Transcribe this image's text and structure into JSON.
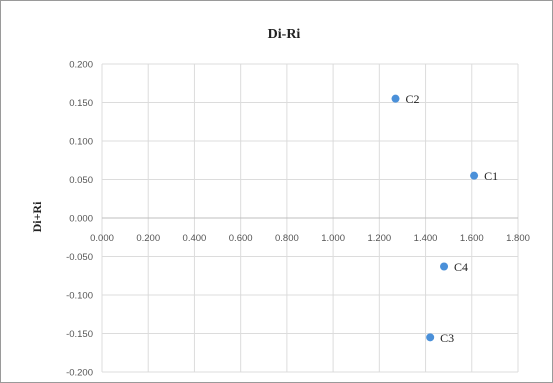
{
  "chart_data": {
    "type": "scatter",
    "title": "Di-Ri",
    "xlabel": "",
    "ylabel": "Di+Ri",
    "xlim": [
      0,
      1.8
    ],
    "ylim": [
      -0.2,
      0.2
    ],
    "x_ticks": [
      "0.000",
      "0.200",
      "0.400",
      "0.600",
      "0.800",
      "1.000",
      "1.200",
      "1.400",
      "1.600",
      "1.800"
    ],
    "y_ticks": [
      "0.200",
      "0.150",
      "0.100",
      "0.050",
      "0.000",
      "-0.050",
      "-0.100",
      "-0.150",
      "-0.200"
    ],
    "grid": true,
    "points": [
      {
        "label": "C1",
        "x": 1.61,
        "y": 0.055
      },
      {
        "label": "C2",
        "x": 1.27,
        "y": 0.155
      },
      {
        "label": "C3",
        "x": 1.42,
        "y": -0.155
      },
      {
        "label": "C4",
        "x": 1.48,
        "y": -0.063
      }
    ],
    "colors": {
      "point": "#4a90d9"
    }
  }
}
